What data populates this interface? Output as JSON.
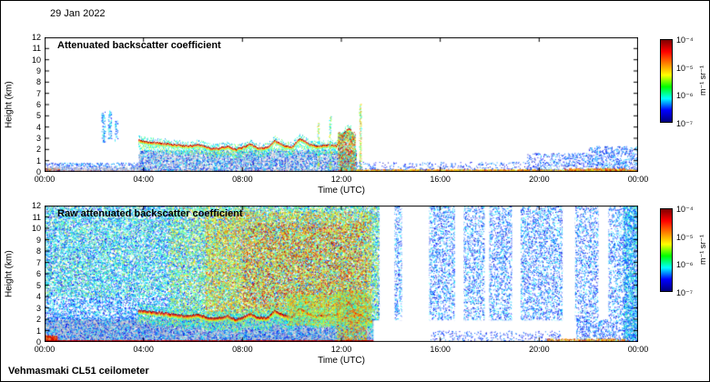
{
  "date_label": "29 Jan 2022",
  "footer_label": "Vehmasmaki CL51 ceilometer",
  "chart_data": [
    {
      "type": "heatmap",
      "title": "Attenuated backscatter coefficient",
      "xlabel": "Time (UTC)",
      "ylabel": "Height (km)",
      "x_ticks": [
        "00:00",
        "04:00",
        "08:00",
        "12:00",
        "16:00",
        "20:00",
        "00:00"
      ],
      "x_tick_hours": [
        0,
        4,
        8,
        12,
        16,
        20,
        24
      ],
      "x_range_hours": [
        0,
        24
      ],
      "y_ticks": [
        "0",
        "1",
        "2",
        "3",
        "4",
        "5",
        "6",
        "7",
        "8",
        "9",
        "10",
        "11",
        "12"
      ],
      "y_range_km": [
        0,
        12
      ],
      "grid": false,
      "colorbar": {
        "scale": "log",
        "min_value": "1e-7",
        "max_value": "1e-4",
        "ticks": [
          "10⁻⁴",
          "10⁻⁵",
          "10⁻⁶",
          "10⁻⁷"
        ],
        "label": "m⁻¹ sr⁻¹",
        "colormap": "jet",
        "colors": [
          "#7f0000",
          "#ff0000",
          "#ff7f00",
          "#ffff00",
          "#00ff00",
          "#00ffff",
          "#0000ff",
          "#00007f"
        ]
      },
      "features": [
        {
          "kind": "speckle",
          "t": [
            0,
            0.6
          ],
          "z": [
            0,
            0.35
          ],
          "density": 300,
          "intensity": [
            0.55,
            1.0
          ]
        },
        {
          "kind": "speckle",
          "t": [
            0,
            4.0
          ],
          "z": [
            0,
            0.85
          ],
          "density": 40,
          "intensity": [
            0.05,
            0.35
          ]
        },
        {
          "kind": "speckle",
          "t": [
            0,
            4.0
          ],
          "z": [
            0,
            0.45
          ],
          "density": 70,
          "palette": "gray"
        },
        {
          "kind": "speckle",
          "t": [
            2.3,
            2.45
          ],
          "z": [
            2.6,
            5.4
          ],
          "density": 55,
          "intensity": [
            0.1,
            0.45
          ]
        },
        {
          "kind": "speckle",
          "t": [
            2.55,
            2.7
          ],
          "z": [
            3.0,
            5.6
          ],
          "density": 55,
          "intensity": [
            0.1,
            0.45
          ]
        },
        {
          "kind": "speckle",
          "t": [
            2.82,
            2.95
          ],
          "z": [
            2.7,
            4.6
          ],
          "density": 45,
          "intensity": [
            0.1,
            0.45
          ]
        },
        {
          "kind": "speckle",
          "t": [
            3.8,
            12.6
          ],
          "z": [
            0,
            1.9
          ],
          "density": 70,
          "palette": "gray"
        },
        {
          "kind": "speckle",
          "t": [
            3.8,
            12.6
          ],
          "z": [
            0,
            2.0
          ],
          "density": 40,
          "intensity": [
            0.05,
            0.4
          ]
        },
        {
          "kind": "trace",
          "points": [
            [
              3.8,
              2.85
            ],
            [
              4.3,
              2.7
            ],
            [
              4.8,
              2.6
            ],
            [
              5.3,
              2.45
            ],
            [
              5.8,
              2.35
            ],
            [
              6.2,
              2.5
            ],
            [
              6.6,
              2.2
            ],
            [
              7.0,
              2.15
            ],
            [
              7.4,
              2.35
            ],
            [
              7.7,
              2.05
            ],
            [
              8.0,
              2.25
            ],
            [
              8.3,
              2.55
            ],
            [
              8.6,
              2.2
            ],
            [
              9.0,
              2.2
            ],
            [
              9.3,
              2.85
            ],
            [
              9.6,
              2.45
            ],
            [
              10.0,
              2.25
            ],
            [
              10.3,
              3.05
            ],
            [
              10.7,
              2.5
            ],
            [
              11.0,
              2.35
            ],
            [
              11.4,
              2.45
            ],
            [
              11.8,
              2.4
            ],
            [
              12.0,
              3.3
            ],
            [
              12.2,
              3.75
            ],
            [
              12.35,
              3.9
            ],
            [
              12.5,
              2.8
            ],
            [
              12.6,
              1.4
            ]
          ],
          "thickness": 4,
          "intensity": [
            0.45,
            1.0
          ],
          "halo": true,
          "halo_spread": 6,
          "halo_density": 3
        },
        {
          "kind": "speckle",
          "t": [
            11.85,
            12.55
          ],
          "z": [
            0,
            3.6
          ],
          "density": 140,
          "intensity": [
            0.25,
            1.0
          ]
        },
        {
          "kind": "speckle",
          "t": [
            11.02,
            11.1
          ],
          "z": [
            0.3,
            4.4
          ],
          "density": 70,
          "intensity": [
            0.3,
            0.7
          ]
        },
        {
          "kind": "speckle",
          "t": [
            11.5,
            11.58
          ],
          "z": [
            0.3,
            5.0
          ],
          "density": 70,
          "intensity": [
            0.3,
            0.7
          ]
        },
        {
          "kind": "speckle",
          "t": [
            12.72,
            12.8
          ],
          "z": [
            0.3,
            6.2
          ],
          "density": 90,
          "intensity": [
            0.35,
            0.8
          ]
        },
        {
          "kind": "speckle",
          "t": [
            0,
            24
          ],
          "z": [
            0,
            0.1
          ],
          "density": 500,
          "intensity": [
            0.75,
            1.0
          ]
        },
        {
          "kind": "speckle",
          "t": [
            12.6,
            24
          ],
          "z": [
            0.08,
            0.25
          ],
          "density": 200,
          "intensity": [
            0.55,
            0.85
          ]
        },
        {
          "kind": "speckle",
          "t": [
            12.6,
            19.5
          ],
          "z": [
            0.2,
            0.9
          ],
          "density": 18,
          "intensity": [
            0.05,
            0.3
          ]
        },
        {
          "kind": "speckle",
          "t": [
            19.5,
            22.0
          ],
          "z": [
            0.2,
            1.7
          ],
          "density": 30,
          "intensity": [
            0.05,
            0.35
          ]
        },
        {
          "kind": "speckle",
          "t": [
            22.0,
            24.0
          ],
          "z": [
            0.2,
            2.3
          ],
          "density": 40,
          "intensity": [
            0.05,
            0.35
          ]
        },
        {
          "kind": "speckle",
          "t": [
            21.0,
            23.5
          ],
          "z": [
            0,
            0.35
          ],
          "density": 110,
          "intensity": [
            0.5,
            0.95
          ]
        }
      ]
    },
    {
      "type": "heatmap",
      "title": "Raw attenuated backscatter coefficient",
      "xlabel": "Time (UTC)",
      "ylabel": "Height (km)",
      "x_ticks": [
        "00:00",
        "04:00",
        "08:00",
        "12:00",
        "16:00",
        "20:00",
        "00:00"
      ],
      "x_tick_hours": [
        0,
        4,
        8,
        12,
        16,
        20,
        24
      ],
      "x_range_hours": [
        0,
        24
      ],
      "y_ticks": [
        "0",
        "1",
        "2",
        "3",
        "4",
        "5",
        "6",
        "7",
        "8",
        "9",
        "10",
        "11",
        "12"
      ],
      "y_range_km": [
        0,
        12
      ],
      "grid": false,
      "colorbar": {
        "scale": "log",
        "min_value": "1e-7",
        "max_value": "1e-4",
        "ticks": [
          "10⁻⁴",
          "10⁻⁵",
          "10⁻⁶",
          "10⁻⁷"
        ],
        "label": "m⁻¹ sr⁻¹",
        "colormap": "jet",
        "colors": [
          "#7f0000",
          "#ff0000",
          "#ff7f00",
          "#ffff00",
          "#00ff00",
          "#00ffff",
          "#0000ff",
          "#00007f"
        ]
      },
      "features": [
        {
          "kind": "speckle",
          "t": [
            0,
            13.5
          ],
          "z": [
            0,
            12
          ],
          "density": 55,
          "intensity": [
            0.05,
            0.45
          ]
        },
        {
          "kind": "speckle",
          "t": [
            13.5,
            24
          ],
          "z": [
            0,
            12
          ],
          "density": 33,
          "intensity": [
            0.05,
            0.4
          ]
        },
        {
          "kind": "speckle",
          "t": [
            0,
            5
          ],
          "z": [
            4,
            12
          ],
          "density": 25,
          "intensity": [
            0.3,
            0.6
          ]
        },
        {
          "kind": "speckle",
          "t": [
            5,
            13.5
          ],
          "z": [
            1.5,
            12
          ],
          "density": 45,
          "intensity": [
            0.35,
            0.7
          ]
        },
        {
          "kind": "speckle",
          "t": [
            6.5,
            13.2
          ],
          "z": [
            2.5,
            11.5
          ],
          "density": 40,
          "intensity": [
            0.5,
            0.85
          ]
        },
        {
          "kind": "speckle",
          "t": [
            8,
            13
          ],
          "z": [
            3,
            10.5
          ],
          "density": 12,
          "intensity": [
            0.85,
            1.0
          ]
        },
        {
          "kind": "speckle",
          "t": [
            0,
            13.3
          ],
          "z": [
            0,
            2.0
          ],
          "density": 120,
          "palette": "gray"
        },
        {
          "kind": "speckle",
          "t": [
            0,
            13.3
          ],
          "z": [
            0,
            2.2
          ],
          "density": 40,
          "intensity": [
            0.05,
            0.4
          ]
        },
        {
          "kind": "speckle",
          "t": [
            0,
            0.5
          ],
          "z": [
            0,
            0.6
          ],
          "density": 250,
          "intensity": [
            0.7,
            1.0
          ]
        },
        {
          "kind": "trace",
          "points": [
            [
              3.8,
              2.85
            ],
            [
              4.3,
              2.7
            ],
            [
              4.8,
              2.6
            ],
            [
              5.3,
              2.45
            ],
            [
              5.8,
              2.35
            ],
            [
              6.2,
              2.5
            ],
            [
              6.6,
              2.2
            ],
            [
              7.0,
              2.15
            ],
            [
              7.4,
              2.35
            ],
            [
              7.7,
              2.05
            ],
            [
              8.0,
              2.25
            ],
            [
              8.3,
              2.55
            ],
            [
              8.6,
              2.2
            ],
            [
              9.0,
              2.2
            ],
            [
              9.3,
              2.85
            ],
            [
              9.6,
              2.45
            ],
            [
              10.0,
              2.25
            ],
            [
              10.3,
              3.05
            ],
            [
              10.7,
              2.5
            ],
            [
              11.0,
              2.35
            ],
            [
              11.4,
              2.45
            ],
            [
              11.8,
              2.4
            ],
            [
              12.0,
              3.3
            ],
            [
              12.2,
              3.6
            ],
            [
              12.6,
              2.6
            ],
            [
              13.0,
              2.2
            ],
            [
              13.2,
              1.9
            ]
          ],
          "thickness": 5,
          "intensity": [
            0.5,
            1.0
          ],
          "halo": true,
          "halo_spread": 9,
          "halo_density": 5
        },
        {
          "kind": "speckle",
          "t": [
            9.8,
            13.2
          ],
          "z": [
            1.5,
            4.2
          ],
          "density": 90,
          "intensity": [
            0.35,
            0.8
          ]
        },
        {
          "kind": "speckle",
          "t": [
            11.8,
            13.0
          ],
          "z": [
            0,
            4.6
          ],
          "density": 120,
          "intensity": [
            0.3,
            0.9
          ]
        },
        {
          "kind": "speckle",
          "t": [
            0,
            13.3
          ],
          "z": [
            0,
            0.15
          ],
          "density": 600,
          "intensity": [
            0.85,
            1.0
          ]
        },
        {
          "kind": "gap",
          "t": [
            13.55,
            14.15
          ],
          "z": [
            0,
            12
          ]
        },
        {
          "kind": "gap",
          "t": [
            14.45,
            15.55
          ],
          "z": [
            0,
            12
          ]
        },
        {
          "kind": "gap",
          "t": [
            16.6,
            16.95
          ],
          "z": [
            0,
            12
          ]
        },
        {
          "kind": "gap",
          "t": [
            17.8,
            17.98
          ],
          "z": [
            0,
            12
          ]
        },
        {
          "kind": "gap",
          "t": [
            18.9,
            19.25
          ],
          "z": [
            0,
            12
          ]
        },
        {
          "kind": "gap",
          "t": [
            20.95,
            21.45
          ],
          "z": [
            0,
            12
          ]
        },
        {
          "kind": "gap",
          "t": [
            22.4,
            22.8
          ],
          "z": [
            0,
            12
          ]
        },
        {
          "kind": "gap",
          "t": [
            13.3,
            24
          ],
          "z": [
            0,
            1.9
          ]
        },
        {
          "kind": "speckle",
          "t": [
            15.6,
            20.9
          ],
          "z": [
            0,
            1.0
          ],
          "density": 18,
          "intensity": [
            0.05,
            0.3
          ]
        },
        {
          "kind": "speckle",
          "t": [
            21.5,
            24
          ],
          "z": [
            0,
            2.0
          ],
          "density": 40,
          "intensity": [
            0.05,
            0.35
          ]
        },
        {
          "kind": "speckle",
          "t": [
            20.3,
            23.6
          ],
          "z": [
            0,
            0.3
          ],
          "density": 130,
          "intensity": [
            0.5,
            1.0
          ]
        },
        {
          "kind": "speckle",
          "t": [
            23.4,
            24
          ],
          "z": [
            0,
            12
          ],
          "density": 70,
          "intensity": [
            0.1,
            0.5
          ]
        }
      ]
    }
  ]
}
